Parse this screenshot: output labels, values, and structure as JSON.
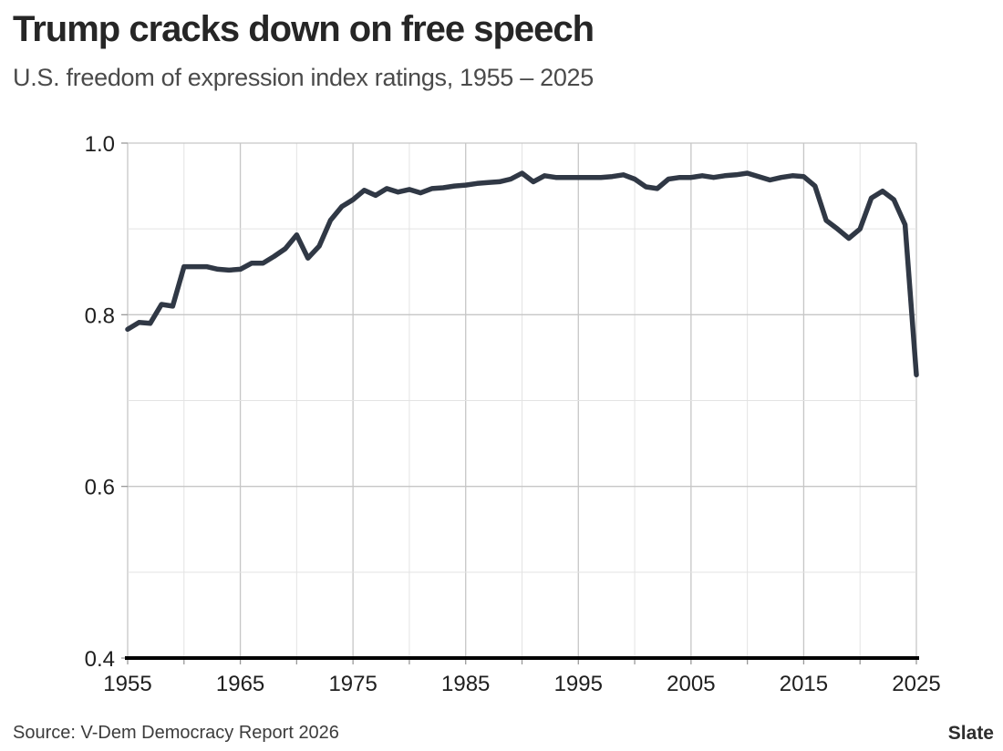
{
  "header": {
    "title": "Trump cracks down on free speech",
    "subtitle": "U.S. freedom of expression index ratings, 1955 – 2025"
  },
  "footer": {
    "source": "Source: V-Dem Democracy Report 2026",
    "brand": "Slate"
  },
  "chart_data": {
    "type": "line",
    "title": "Trump cracks down on free speech",
    "subtitle": "U.S. freedom of expression index ratings, 1955 – 2025",
    "xlabel": "",
    "ylabel": "",
    "x_range": [
      1955,
      2025
    ],
    "y_range": [
      0.4,
      1.0
    ],
    "grid": {
      "show": true,
      "major_color": "#c6c6c6",
      "minor_color": "#e3e3e3",
      "minor_x_step_years": 5,
      "minor_y_step": 0.1
    },
    "axis_color": "#000000",
    "tick_color": "#999999",
    "legend": "none",
    "x_ticks": [
      {
        "value": 1955,
        "label": "1955"
      },
      {
        "value": 1965,
        "label": "1965"
      },
      {
        "value": 1975,
        "label": "1975"
      },
      {
        "value": 1985,
        "label": "1985"
      },
      {
        "value": 1995,
        "label": "1995"
      },
      {
        "value": 2005,
        "label": "2005"
      },
      {
        "value": 2015,
        "label": "2015"
      },
      {
        "value": 2025,
        "label": "2025"
      }
    ],
    "y_ticks": [
      {
        "value": 1.0,
        "label": "1.0"
      },
      {
        "value": 0.8,
        "label": "0.8"
      },
      {
        "value": 0.6,
        "label": "0.6"
      },
      {
        "value": 0.4,
        "label": "0.4"
      }
    ],
    "series": [
      {
        "name": "U.S. freedom of expression index",
        "color": "#303845",
        "stroke_width": 5.5,
        "x": [
          1955,
          1956,
          1957,
          1958,
          1959,
          1960,
          1961,
          1962,
          1963,
          1964,
          1965,
          1966,
          1967,
          1968,
          1969,
          1970,
          1971,
          1972,
          1973,
          1974,
          1975,
          1976,
          1977,
          1978,
          1979,
          1980,
          1981,
          1982,
          1983,
          1984,
          1985,
          1986,
          1987,
          1988,
          1989,
          1990,
          1991,
          1992,
          1993,
          1994,
          1995,
          1996,
          1997,
          1998,
          1999,
          2000,
          2001,
          2002,
          2003,
          2004,
          2005,
          2006,
          2007,
          2008,
          2009,
          2010,
          2011,
          2012,
          2013,
          2014,
          2015,
          2016,
          2017,
          2018,
          2019,
          2020,
          2021,
          2022,
          2023,
          2024,
          2025
        ],
        "y": [
          0.783,
          0.791,
          0.79,
          0.812,
          0.81,
          0.856,
          0.856,
          0.856,
          0.853,
          0.852,
          0.853,
          0.86,
          0.86,
          0.868,
          0.877,
          0.893,
          0.866,
          0.88,
          0.91,
          0.926,
          0.934,
          0.945,
          0.939,
          0.947,
          0.943,
          0.946,
          0.942,
          0.947,
          0.948,
          0.95,
          0.951,
          0.953,
          0.954,
          0.955,
          0.958,
          0.965,
          0.955,
          0.962,
          0.96,
          0.96,
          0.96,
          0.96,
          0.96,
          0.961,
          0.963,
          0.958,
          0.949,
          0.947,
          0.958,
          0.96,
          0.96,
          0.962,
          0.96,
          0.962,
          0.963,
          0.965,
          0.961,
          0.957,
          0.96,
          0.962,
          0.961,
          0.95,
          0.91,
          0.9,
          0.889,
          0.9,
          0.936,
          0.944,
          0.934,
          0.905,
          0.73
        ]
      }
    ]
  }
}
